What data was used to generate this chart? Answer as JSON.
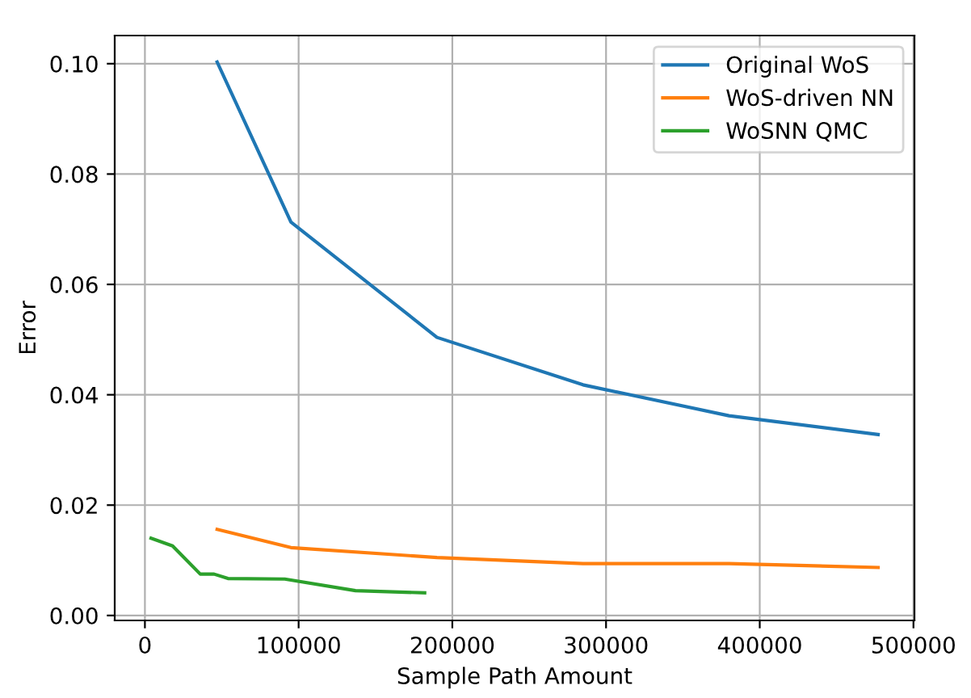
{
  "chart_data": {
    "type": "line",
    "xlabel": "Sample Path Amount",
    "ylabel": "Error",
    "xlim": [
      -19650,
      500650
    ],
    "ylim": [
      -0.0009,
      0.1051
    ],
    "xticks": [
      0,
      100000,
      200000,
      300000,
      400000,
      500000
    ],
    "yticks": [
      {
        "value": 0,
        "label": "0.00"
      },
      {
        "value": 0.02,
        "label": "0.02"
      },
      {
        "value": 0.04,
        "label": "0.04"
      },
      {
        "value": 0.06,
        "label": "0.06"
      },
      {
        "value": 0.08,
        "label": "0.08"
      },
      {
        "value": 0.1,
        "label": "0.10"
      }
    ],
    "grid": true,
    "legend": "top right",
    "series": [
      {
        "name": "Original WoS",
        "color": "#1f77b4",
        "x": [
          47000,
          95000,
          190000,
          285000,
          380000,
          477000
        ],
        "values": [
          0.1003,
          0.0713,
          0.0504,
          0.0418,
          0.0362,
          0.0328
        ]
      },
      {
        "name": "WoS-driven NN",
        "color": "#ff7f0e",
        "x": [
          47000,
          95000,
          190000,
          285000,
          380000,
          477000
        ],
        "values": [
          0.0156,
          0.0123,
          0.0105,
          0.0094,
          0.0094,
          0.0087
        ]
      },
      {
        "name": "WoSNN QMC",
        "color": "#2ca02c",
        "x": [
          4000,
          18000,
          36000,
          45000,
          54000,
          91000,
          137000,
          182000
        ],
        "values": [
          0.014,
          0.0126,
          0.0075,
          0.0075,
          0.0067,
          0.0066,
          0.0045,
          0.0041
        ]
      }
    ]
  }
}
